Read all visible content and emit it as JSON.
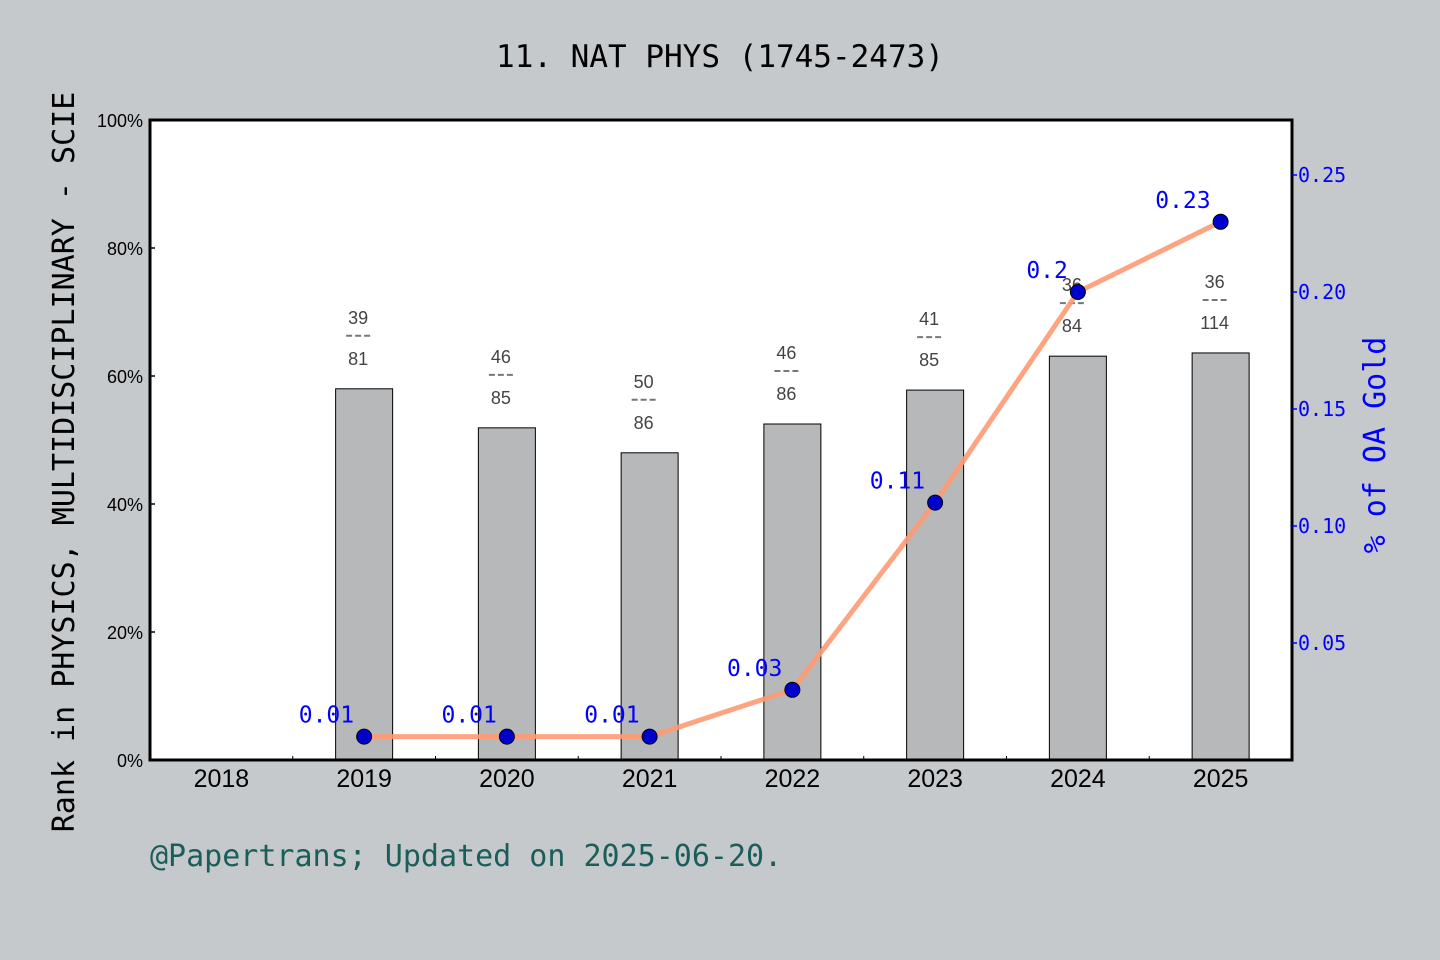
{
  "chart_data": {
    "type": "bar+line",
    "title": "11. NAT PHYS (1745-2473)",
    "ylabel": "Rank in PHYSICS, MULTIDISCIPLINARY - SCIE",
    "y2label": "% of OA Gold",
    "footer": "@Papertrans; Updated on 2025-06-20.",
    "categories": [
      "2018",
      "2019",
      "2020",
      "2021",
      "2022",
      "2023",
      "2024",
      "2025"
    ],
    "ylim": [
      0,
      100
    ],
    "yticks": [
      "0%",
      "20%",
      "40%",
      "60%",
      "80%",
      "100%"
    ],
    "y2lim": [
      0,
      0.2735
    ],
    "y2ticks": [
      "0.05",
      "0.10",
      "0.15",
      "0.20",
      "0.25"
    ],
    "bars": {
      "values": [
        null,
        58.0,
        51.9,
        48.0,
        52.5,
        57.8,
        63.1,
        63.6
      ],
      "labels": [
        null,
        [
          "39",
          "81"
        ],
        [
          "46",
          "85"
        ],
        [
          "50",
          "86"
        ],
        [
          "46",
          "86"
        ],
        [
          "41",
          "85"
        ],
        [
          "36",
          "84"
        ],
        [
          "36",
          "114"
        ]
      ],
      "color": "#b7b8ba"
    },
    "line": {
      "values": [
        null,
        0.01,
        0.01,
        0.01,
        0.03,
        0.11,
        0.2,
        0.23
      ],
      "labels": [
        null,
        "0.01",
        "0.01",
        "0.01",
        "0.03",
        "0.11",
        "0.2",
        "0.23"
      ],
      "line_color": "#ff9a72",
      "marker_color": "#0000cc",
      "label_color": "#0000ff"
    },
    "grid": false,
    "legend": "none"
  }
}
